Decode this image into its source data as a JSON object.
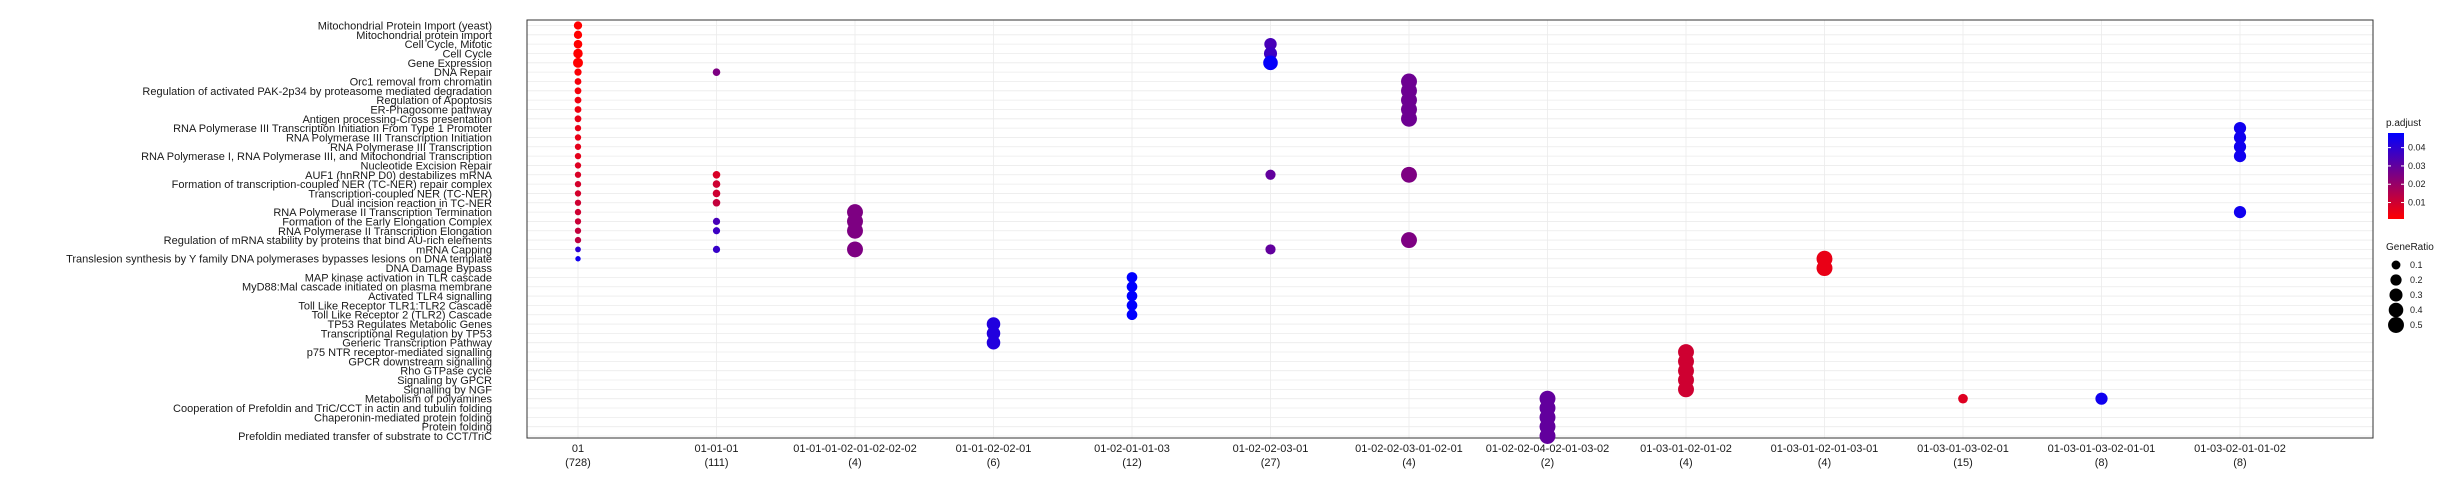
{
  "chart_data": {
    "type": "scatter",
    "title": "",
    "xlabel": "",
    "ylabel": "",
    "grid": true,
    "x_categories": [
      {
        "label": "01",
        "count": "(728)"
      },
      {
        "label": "01-01-01",
        "count": "(111)"
      },
      {
        "label": "01-01-01-02-01-02-02-02",
        "count": "(4)"
      },
      {
        "label": "01-01-02-02-01",
        "count": "(6)"
      },
      {
        "label": "01-02-01-01-03",
        "count": "(12)"
      },
      {
        "label": "01-02-02-03-01",
        "count": "(27)"
      },
      {
        "label": "01-02-02-03-01-02-01",
        "count": "(4)"
      },
      {
        "label": "01-02-02-04-02-01-03-02",
        "count": "(2)"
      },
      {
        "label": "01-03-01-02-01-02",
        "count": "(4)"
      },
      {
        "label": "01-03-01-02-01-03-01",
        "count": "(4)"
      },
      {
        "label": "01-03-01-03-02-01",
        "count": "(15)"
      },
      {
        "label": "01-03-01-03-02-01-01",
        "count": "(8)"
      },
      {
        "label": "01-03-02-01-01-02",
        "count": "(8)"
      }
    ],
    "y_categories": [
      "Mitochondrial Protein Import (yeast)",
      "Mitochondrial protein import",
      "Cell Cycle, Mitotic",
      "Cell Cycle",
      "Gene Expression",
      "DNA Repair",
      "Orc1 removal from chromatin",
      "Regulation of activated PAK-2p34 by proteasome mediated degradation",
      "Regulation of Apoptosis",
      "ER-Phagosome pathway",
      "Antigen processing-Cross presentation",
      "RNA Polymerase III Transcription Initiation From Type 1 Promoter",
      "RNA Polymerase III Transcription Initiation",
      "RNA Polymerase III Transcription",
      "RNA Polymerase I, RNA Polymerase III, and Mitochondrial Transcription",
      "Nucleotide Excision Repair",
      "AUF1 (hnRNP D0) destabilizes mRNA",
      "Formation of transcription-coupled NER (TC-NER) repair complex",
      "Transcription-coupled NER (TC-NER)",
      "Dual incision reaction in TC-NER",
      "RNA Polymerase II Transcription Termination",
      "Formation of the Early Elongation Complex",
      "RNA Polymerase II Transcription Elongation",
      "Regulation of mRNA stability by proteins that bind AU-rich elements",
      "mRNA Capping",
      "Translesion synthesis by Y family DNA polymerases bypasses lesions on DNA template",
      "DNA Damage Bypass",
      "MAP kinase activation in TLR cascade",
      "MyD88:Mal cascade initiated on plasma membrane",
      "Activated TLR4 signalling",
      "Toll Like Receptor TLR1:TLR2 Cascade",
      "Toll Like Receptor 2 (TLR2) Cascade",
      "TP53 Regulates Metabolic Genes",
      "Transcriptional Regulation by TP53",
      "Generic Transcription Pathway",
      "p75 NTR receptor-mediated signalling",
      "GPCR downstream signalling",
      "Rho GTPase cycle",
      "Signaling by GPCR",
      "Signalling by NGF",
      "Metabolism of polyamines",
      "Cooperation of Prefoldin and TriC/CCT  in actin and tubulin folding",
      "Chaperonin-mediated protein folding",
      "Protein folding",
      "Prefoldin mediated transfer of substrate  to CCT/TriC"
    ],
    "points": [
      {
        "x": 0,
        "y": 0,
        "gene_ratio": 0.08,
        "p_adjust": 0.001
      },
      {
        "x": 0,
        "y": 1,
        "gene_ratio": 0.08,
        "p_adjust": 0.001
      },
      {
        "x": 0,
        "y": 2,
        "gene_ratio": 0.09,
        "p_adjust": 0.001
      },
      {
        "x": 0,
        "y": 3,
        "gene_ratio": 0.12,
        "p_adjust": 0.001
      },
      {
        "x": 0,
        "y": 4,
        "gene_ratio": 0.14,
        "p_adjust": 0.001
      },
      {
        "x": 0,
        "y": 5,
        "gene_ratio": 0.05,
        "p_adjust": 0.002
      },
      {
        "x": 0,
        "y": 6,
        "gene_ratio": 0.04,
        "p_adjust": 0.003
      },
      {
        "x": 0,
        "y": 7,
        "gene_ratio": 0.04,
        "p_adjust": 0.003
      },
      {
        "x": 0,
        "y": 8,
        "gene_ratio": 0.04,
        "p_adjust": 0.004
      },
      {
        "x": 0,
        "y": 9,
        "gene_ratio": 0.04,
        "p_adjust": 0.004
      },
      {
        "x": 0,
        "y": 10,
        "gene_ratio": 0.04,
        "p_adjust": 0.005
      },
      {
        "x": 0,
        "y": 11,
        "gene_ratio": 0.03,
        "p_adjust": 0.005
      },
      {
        "x": 0,
        "y": 12,
        "gene_ratio": 0.03,
        "p_adjust": 0.005
      },
      {
        "x": 0,
        "y": 13,
        "gene_ratio": 0.03,
        "p_adjust": 0.006
      },
      {
        "x": 0,
        "y": 14,
        "gene_ratio": 0.03,
        "p_adjust": 0.006
      },
      {
        "x": 0,
        "y": 15,
        "gene_ratio": 0.03,
        "p_adjust": 0.007
      },
      {
        "x": 0,
        "y": 16,
        "gene_ratio": 0.03,
        "p_adjust": 0.008
      },
      {
        "x": 0,
        "y": 17,
        "gene_ratio": 0.03,
        "p_adjust": 0.009
      },
      {
        "x": 0,
        "y": 18,
        "gene_ratio": 0.03,
        "p_adjust": 0.009
      },
      {
        "x": 0,
        "y": 19,
        "gene_ratio": 0.03,
        "p_adjust": 0.01
      },
      {
        "x": 0,
        "y": 20,
        "gene_ratio": 0.03,
        "p_adjust": 0.01
      },
      {
        "x": 0,
        "y": 21,
        "gene_ratio": 0.03,
        "p_adjust": 0.011
      },
      {
        "x": 0,
        "y": 22,
        "gene_ratio": 0.03,
        "p_adjust": 0.012
      },
      {
        "x": 0,
        "y": 23,
        "gene_ratio": 0.03,
        "p_adjust": 0.013
      },
      {
        "x": 0,
        "y": 24,
        "gene_ratio": 0.02,
        "p_adjust": 0.04
      },
      {
        "x": 0,
        "y": 25,
        "gene_ratio": 0.015,
        "p_adjust": 0.045
      },
      {
        "x": 1,
        "y": 5,
        "gene_ratio": 0.06,
        "p_adjust": 0.025
      },
      {
        "x": 1,
        "y": 16,
        "gene_ratio": 0.06,
        "p_adjust": 0.008
      },
      {
        "x": 1,
        "y": 17,
        "gene_ratio": 0.06,
        "p_adjust": 0.01
      },
      {
        "x": 1,
        "y": 18,
        "gene_ratio": 0.06,
        "p_adjust": 0.01
      },
      {
        "x": 1,
        "y": 19,
        "gene_ratio": 0.06,
        "p_adjust": 0.012
      },
      {
        "x": 1,
        "y": 21,
        "gene_ratio": 0.05,
        "p_adjust": 0.035
      },
      {
        "x": 1,
        "y": 22,
        "gene_ratio": 0.05,
        "p_adjust": 0.037
      },
      {
        "x": 1,
        "y": 24,
        "gene_ratio": 0.05,
        "p_adjust": 0.038
      },
      {
        "x": 2,
        "y": 20,
        "gene_ratio": 0.5,
        "p_adjust": 0.025
      },
      {
        "x": 2,
        "y": 21,
        "gene_ratio": 0.5,
        "p_adjust": 0.025
      },
      {
        "x": 2,
        "y": 22,
        "gene_ratio": 0.5,
        "p_adjust": 0.025
      },
      {
        "x": 2,
        "y": 24,
        "gene_ratio": 0.5,
        "p_adjust": 0.025
      },
      {
        "x": 3,
        "y": 32,
        "gene_ratio": 0.33,
        "p_adjust": 0.042
      },
      {
        "x": 3,
        "y": 33,
        "gene_ratio": 0.33,
        "p_adjust": 0.042
      },
      {
        "x": 3,
        "y": 34,
        "gene_ratio": 0.33,
        "p_adjust": 0.042
      },
      {
        "x": 4,
        "y": 27,
        "gene_ratio": 0.17,
        "p_adjust": 0.048
      },
      {
        "x": 4,
        "y": 28,
        "gene_ratio": 0.17,
        "p_adjust": 0.048
      },
      {
        "x": 4,
        "y": 29,
        "gene_ratio": 0.17,
        "p_adjust": 0.048
      },
      {
        "x": 4,
        "y": 30,
        "gene_ratio": 0.17,
        "p_adjust": 0.048
      },
      {
        "x": 4,
        "y": 31,
        "gene_ratio": 0.17,
        "p_adjust": 0.048
      },
      {
        "x": 5,
        "y": 2,
        "gene_ratio": 0.26,
        "p_adjust": 0.035
      },
      {
        "x": 5,
        "y": 3,
        "gene_ratio": 0.3,
        "p_adjust": 0.037
      },
      {
        "x": 5,
        "y": 4,
        "gene_ratio": 0.4,
        "p_adjust": 0.047
      },
      {
        "x": 5,
        "y": 16,
        "gene_ratio": 0.15,
        "p_adjust": 0.03
      },
      {
        "x": 5,
        "y": 24,
        "gene_ratio": 0.15,
        "p_adjust": 0.03
      },
      {
        "x": 6,
        "y": 6,
        "gene_ratio": 0.5,
        "p_adjust": 0.028
      },
      {
        "x": 6,
        "y": 7,
        "gene_ratio": 0.5,
        "p_adjust": 0.028
      },
      {
        "x": 6,
        "y": 8,
        "gene_ratio": 0.5,
        "p_adjust": 0.028
      },
      {
        "x": 6,
        "y": 9,
        "gene_ratio": 0.5,
        "p_adjust": 0.028
      },
      {
        "x": 6,
        "y": 10,
        "gene_ratio": 0.5,
        "p_adjust": 0.028
      },
      {
        "x": 6,
        "y": 16,
        "gene_ratio": 0.5,
        "p_adjust": 0.025
      },
      {
        "x": 6,
        "y": 23,
        "gene_ratio": 0.5,
        "p_adjust": 0.025
      },
      {
        "x": 7,
        "y": 40,
        "gene_ratio": 0.5,
        "p_adjust": 0.03
      },
      {
        "x": 7,
        "y": 41,
        "gene_ratio": 0.5,
        "p_adjust": 0.03
      },
      {
        "x": 7,
        "y": 42,
        "gene_ratio": 0.5,
        "p_adjust": 0.03
      },
      {
        "x": 7,
        "y": 43,
        "gene_ratio": 0.5,
        "p_adjust": 0.03
      },
      {
        "x": 7,
        "y": 44,
        "gene_ratio": 0.5,
        "p_adjust": 0.03
      },
      {
        "x": 8,
        "y": 35,
        "gene_ratio": 0.5,
        "p_adjust": 0.01
      },
      {
        "x": 8,
        "y": 36,
        "gene_ratio": 0.5,
        "p_adjust": 0.01
      },
      {
        "x": 8,
        "y": 37,
        "gene_ratio": 0.5,
        "p_adjust": 0.01
      },
      {
        "x": 8,
        "y": 38,
        "gene_ratio": 0.5,
        "p_adjust": 0.01
      },
      {
        "x": 8,
        "y": 39,
        "gene_ratio": 0.5,
        "p_adjust": 0.01
      },
      {
        "x": 9,
        "y": 25,
        "gene_ratio": 0.5,
        "p_adjust": 0.005
      },
      {
        "x": 9,
        "y": 26,
        "gene_ratio": 0.5,
        "p_adjust": 0.005
      },
      {
        "x": 10,
        "y": 40,
        "gene_ratio": 0.13,
        "p_adjust": 0.007
      },
      {
        "x": 11,
        "y": 40,
        "gene_ratio": 0.25,
        "p_adjust": 0.045
      },
      {
        "x": 12,
        "y": 11,
        "gene_ratio": 0.25,
        "p_adjust": 0.045
      },
      {
        "x": 12,
        "y": 12,
        "gene_ratio": 0.25,
        "p_adjust": 0.045
      },
      {
        "x": 12,
        "y": 13,
        "gene_ratio": 0.25,
        "p_adjust": 0.045
      },
      {
        "x": 12,
        "y": 14,
        "gene_ratio": 0.25,
        "p_adjust": 0.045
      },
      {
        "x": 12,
        "y": 20,
        "gene_ratio": 0.25,
        "p_adjust": 0.045
      }
    ],
    "color_legend": {
      "title": "p.adjust",
      "ticks": [
        "0.04",
        "0.03",
        "0.02",
        "0.01"
      ],
      "tick_values": [
        0.04,
        0.03,
        0.02,
        0.01
      ],
      "range": [
        0.001,
        0.048
      ],
      "low_color": "#ff0000",
      "high_color": "#0000ff"
    },
    "size_legend": {
      "title": "GeneRatio",
      "ticks": [
        "0.1",
        "0.2",
        "0.3",
        "0.4",
        "0.5"
      ],
      "tick_values": [
        0.1,
        0.2,
        0.3,
        0.4,
        0.5
      ]
    },
    "colors": {
      "panel_border": "#333333",
      "grid": "#ebebeb"
    }
  }
}
